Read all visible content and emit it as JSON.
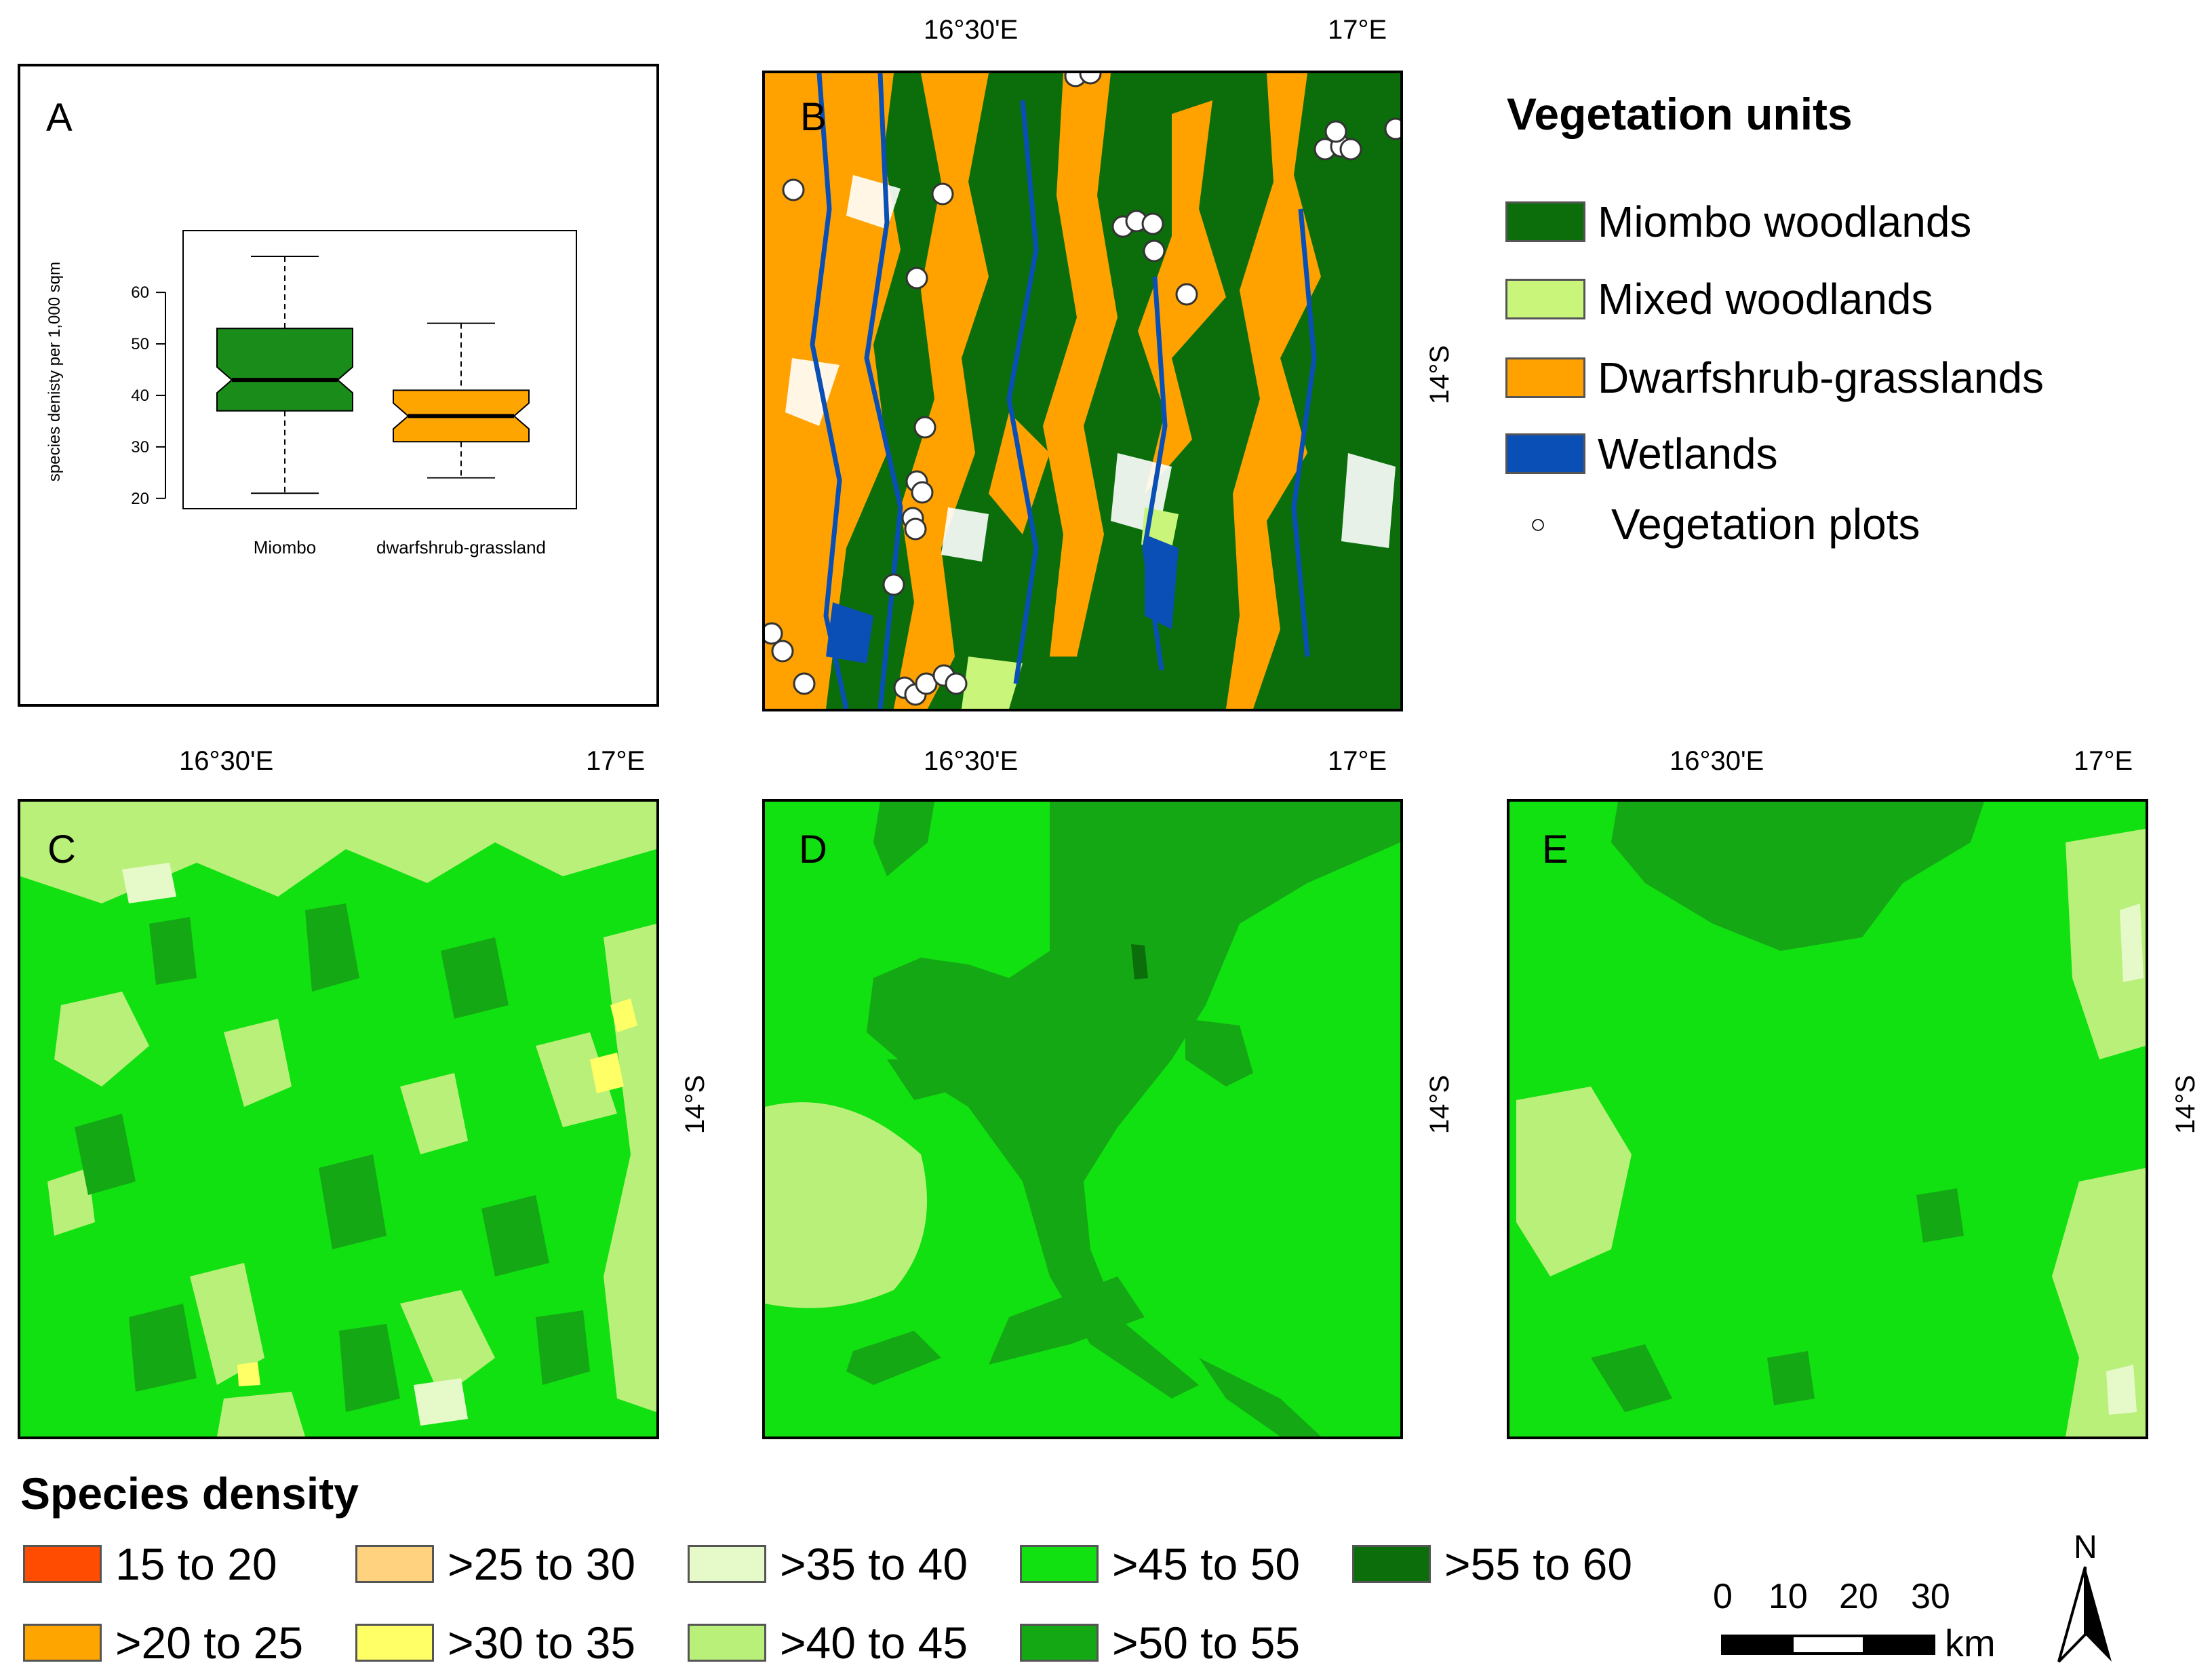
{
  "coords": {
    "lon1": "16°30'E",
    "lon2": "17°E",
    "lat": "14°S"
  },
  "panels": {
    "a": "A",
    "b": "B",
    "c": "C",
    "d": "D",
    "e": "E"
  },
  "chart_data": {
    "type": "box",
    "ylabel": "species denisty per 1,000 sqm",
    "categories": [
      "Miombo",
      "dwarfshrub-grassland"
    ],
    "y_ticks": [
      "20",
      "30",
      "40",
      "50",
      "60"
    ],
    "ylim": [
      18,
      72
    ],
    "boxes": [
      {
        "category": "Miombo",
        "min": 21,
        "q1": 37,
        "median": 43,
        "q3": 53,
        "max": 67,
        "color": "#1a8c1a"
      },
      {
        "category": "dwarfshrub-grassland",
        "min": 24,
        "q1": 31,
        "median": 36,
        "q3": 41,
        "max": 54,
        "color": "#ffa500"
      }
    ]
  },
  "veg_legend": {
    "title": "Vegetation units",
    "items": [
      {
        "label": "Miombo woodlands",
        "color": "#0b6e0b"
      },
      {
        "label": "Mixed woodlands",
        "color": "#c8f57a"
      },
      {
        "label": "Dwarfshrub-grasslands",
        "color": "#ffa200"
      },
      {
        "label": "Wetlands",
        "color": "#0a4fb5"
      }
    ],
    "plots_label": "Vegetation plots",
    "plots_symbol": "○"
  },
  "density_legend": {
    "title": "Species density",
    "items": [
      {
        "label": "15 to 20",
        "color": "#ff4c00"
      },
      {
        "label": ">20 to 25",
        "color": "#ffa500"
      },
      {
        "label": ">25 to 30",
        "color": "#ffd27f"
      },
      {
        "label": ">30 to 35",
        "color": "#ffff66"
      },
      {
        "label": ">35 to 40",
        "color": "#e6f9c8"
      },
      {
        "label": ">40 to 45",
        "color": "#b9f07a"
      },
      {
        "label": ">45 to 50",
        "color": "#11e011"
      },
      {
        "label": ">50 to 55",
        "color": "#14a814"
      },
      {
        "label": ">55 to 60",
        "color": "#0b6e0b"
      }
    ]
  },
  "scale": {
    "ticks": [
      "0",
      "10",
      "20",
      "30"
    ],
    "unit": "km",
    "north": "N"
  }
}
